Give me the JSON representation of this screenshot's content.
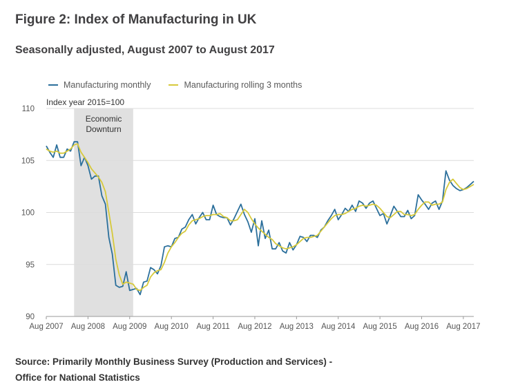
{
  "figure": {
    "title": "Figure 2: Index of Manufacturing in UK",
    "subtitle": "Seasonally adjusted, August 2007 to August 2017"
  },
  "source": {
    "line1": "Source: Primarily Monthly Business Survey (Production and Services) -",
    "line2": "Office for National Statistics"
  },
  "colors": {
    "monthly": "#2b6f9b",
    "rolling": "#d6c93a",
    "shade": "#e0e0e0",
    "grid": "#dcdcdc"
  },
  "chart_data": {
    "type": "line",
    "title": "Figure 2: Index of Manufacturing in UK",
    "ylabel": "Index year 2015=100",
    "xlabel": "",
    "ylim": [
      90,
      110
    ],
    "yticks": [
      90,
      95,
      100,
      105,
      110
    ],
    "xticks": [
      {
        "i": 0,
        "label": "Aug 2007"
      },
      {
        "i": 12,
        "label": "Aug 2008"
      },
      {
        "i": 24,
        "label": "Aug 2009"
      },
      {
        "i": 36,
        "label": "Aug 2010"
      },
      {
        "i": 48,
        "label": "Aug 2011"
      },
      {
        "i": 60,
        "label": "Aug 2012"
      },
      {
        "i": 72,
        "label": "Aug 2013"
      },
      {
        "i": 84,
        "label": "Aug 2014"
      },
      {
        "i": 96,
        "label": "Aug 2015"
      },
      {
        "i": 108,
        "label": "Aug 2016"
      },
      {
        "i": 120,
        "label": "Aug 2017"
      }
    ],
    "shaded_region": {
      "label": [
        "Economic",
        "Downturn"
      ],
      "start_index": 8,
      "end_index": 25
    },
    "series": [
      {
        "name": "Manufacturing monthly",
        "values": [
          106.4,
          105.8,
          105.3,
          106.5,
          105.3,
          105.3,
          106.1,
          105.9,
          106.8,
          106.8,
          104.5,
          105.3,
          104.5,
          103.2,
          103.5,
          103.5,
          101.6,
          100.8,
          97.6,
          96.0,
          93.0,
          92.8,
          92.9,
          94.3,
          92.5,
          92.6,
          92.7,
          92.1,
          93.3,
          93.4,
          94.7,
          94.5,
          94.1,
          94.9,
          96.7,
          96.8,
          96.7,
          97.5,
          97.6,
          98.4,
          98.6,
          99.3,
          99.8,
          98.9,
          99.5,
          100.0,
          99.3,
          99.3,
          100.7,
          99.8,
          99.6,
          99.5,
          99.5,
          98.8,
          99.4,
          100.1,
          100.8,
          99.8,
          99.1,
          98.1,
          99.4,
          96.8,
          99.2,
          97.5,
          98.3,
          96.5,
          96.5,
          97.1,
          96.3,
          96.1,
          97.1,
          96.4,
          96.9,
          97.7,
          97.6,
          97.2,
          97.8,
          97.8,
          97.6,
          98.3,
          98.6,
          99.2,
          99.7,
          100.3,
          99.3,
          99.8,
          100.4,
          100.1,
          100.7,
          100.1,
          101.1,
          100.9,
          100.4,
          100.9,
          101.1,
          100.4,
          99.7,
          99.9,
          98.9,
          99.7,
          100.6,
          100.1,
          99.6,
          99.6,
          100.2,
          99.4,
          99.7,
          101.7,
          101.2,
          100.8,
          100.3,
          100.9,
          101.1,
          100.3,
          101.1,
          104.0,
          103.1,
          102.6,
          102.3,
          102.1,
          102.2,
          102.4,
          102.7,
          103.0
        ]
      },
      {
        "name": "Manufacturing rolling 3 months",
        "values": [
          106.1,
          105.9,
          105.8,
          105.9,
          105.7,
          105.7,
          105.9,
          106.1,
          106.5,
          106.6,
          105.8,
          105.3,
          104.8,
          104.2,
          103.8,
          103.4,
          102.9,
          102.0,
          100.0,
          98.0,
          95.5,
          94.0,
          93.1,
          93.3,
          93.2,
          93.1,
          92.6,
          92.5,
          92.8,
          93.0,
          93.8,
          94.2,
          94.4,
          94.5,
          95.2,
          96.1,
          96.7,
          97.1,
          97.6,
          98.0,
          98.2,
          98.8,
          99.2,
          99.3,
          99.4,
          99.6,
          99.7,
          99.7,
          99.8,
          99.8,
          99.9,
          99.6,
          99.5,
          99.2,
          99.2,
          99.3,
          99.8,
          100.3,
          100.0,
          99.4,
          98.9,
          98.5,
          98.2,
          97.9,
          97.6,
          97.4,
          97.0,
          96.8,
          96.6,
          96.5,
          96.6,
          96.7,
          96.9,
          97.2,
          97.5,
          97.6,
          97.6,
          97.7,
          97.8,
          98.2,
          98.6,
          99.0,
          99.4,
          99.7,
          99.8,
          99.8,
          99.9,
          100.1,
          100.3,
          100.4,
          100.6,
          100.7,
          100.6,
          100.7,
          100.8,
          100.7,
          100.4,
          100.0,
          99.6,
          99.5,
          99.8,
          100.1,
          100.1,
          99.8,
          99.8,
          99.7,
          99.8,
          100.3,
          100.7,
          101.0,
          101.0,
          100.7,
          100.8,
          100.8,
          101.0,
          102.2,
          102.9,
          103.2,
          102.8,
          102.4,
          102.2,
          102.3,
          102.5,
          102.7
        ]
      }
    ]
  }
}
